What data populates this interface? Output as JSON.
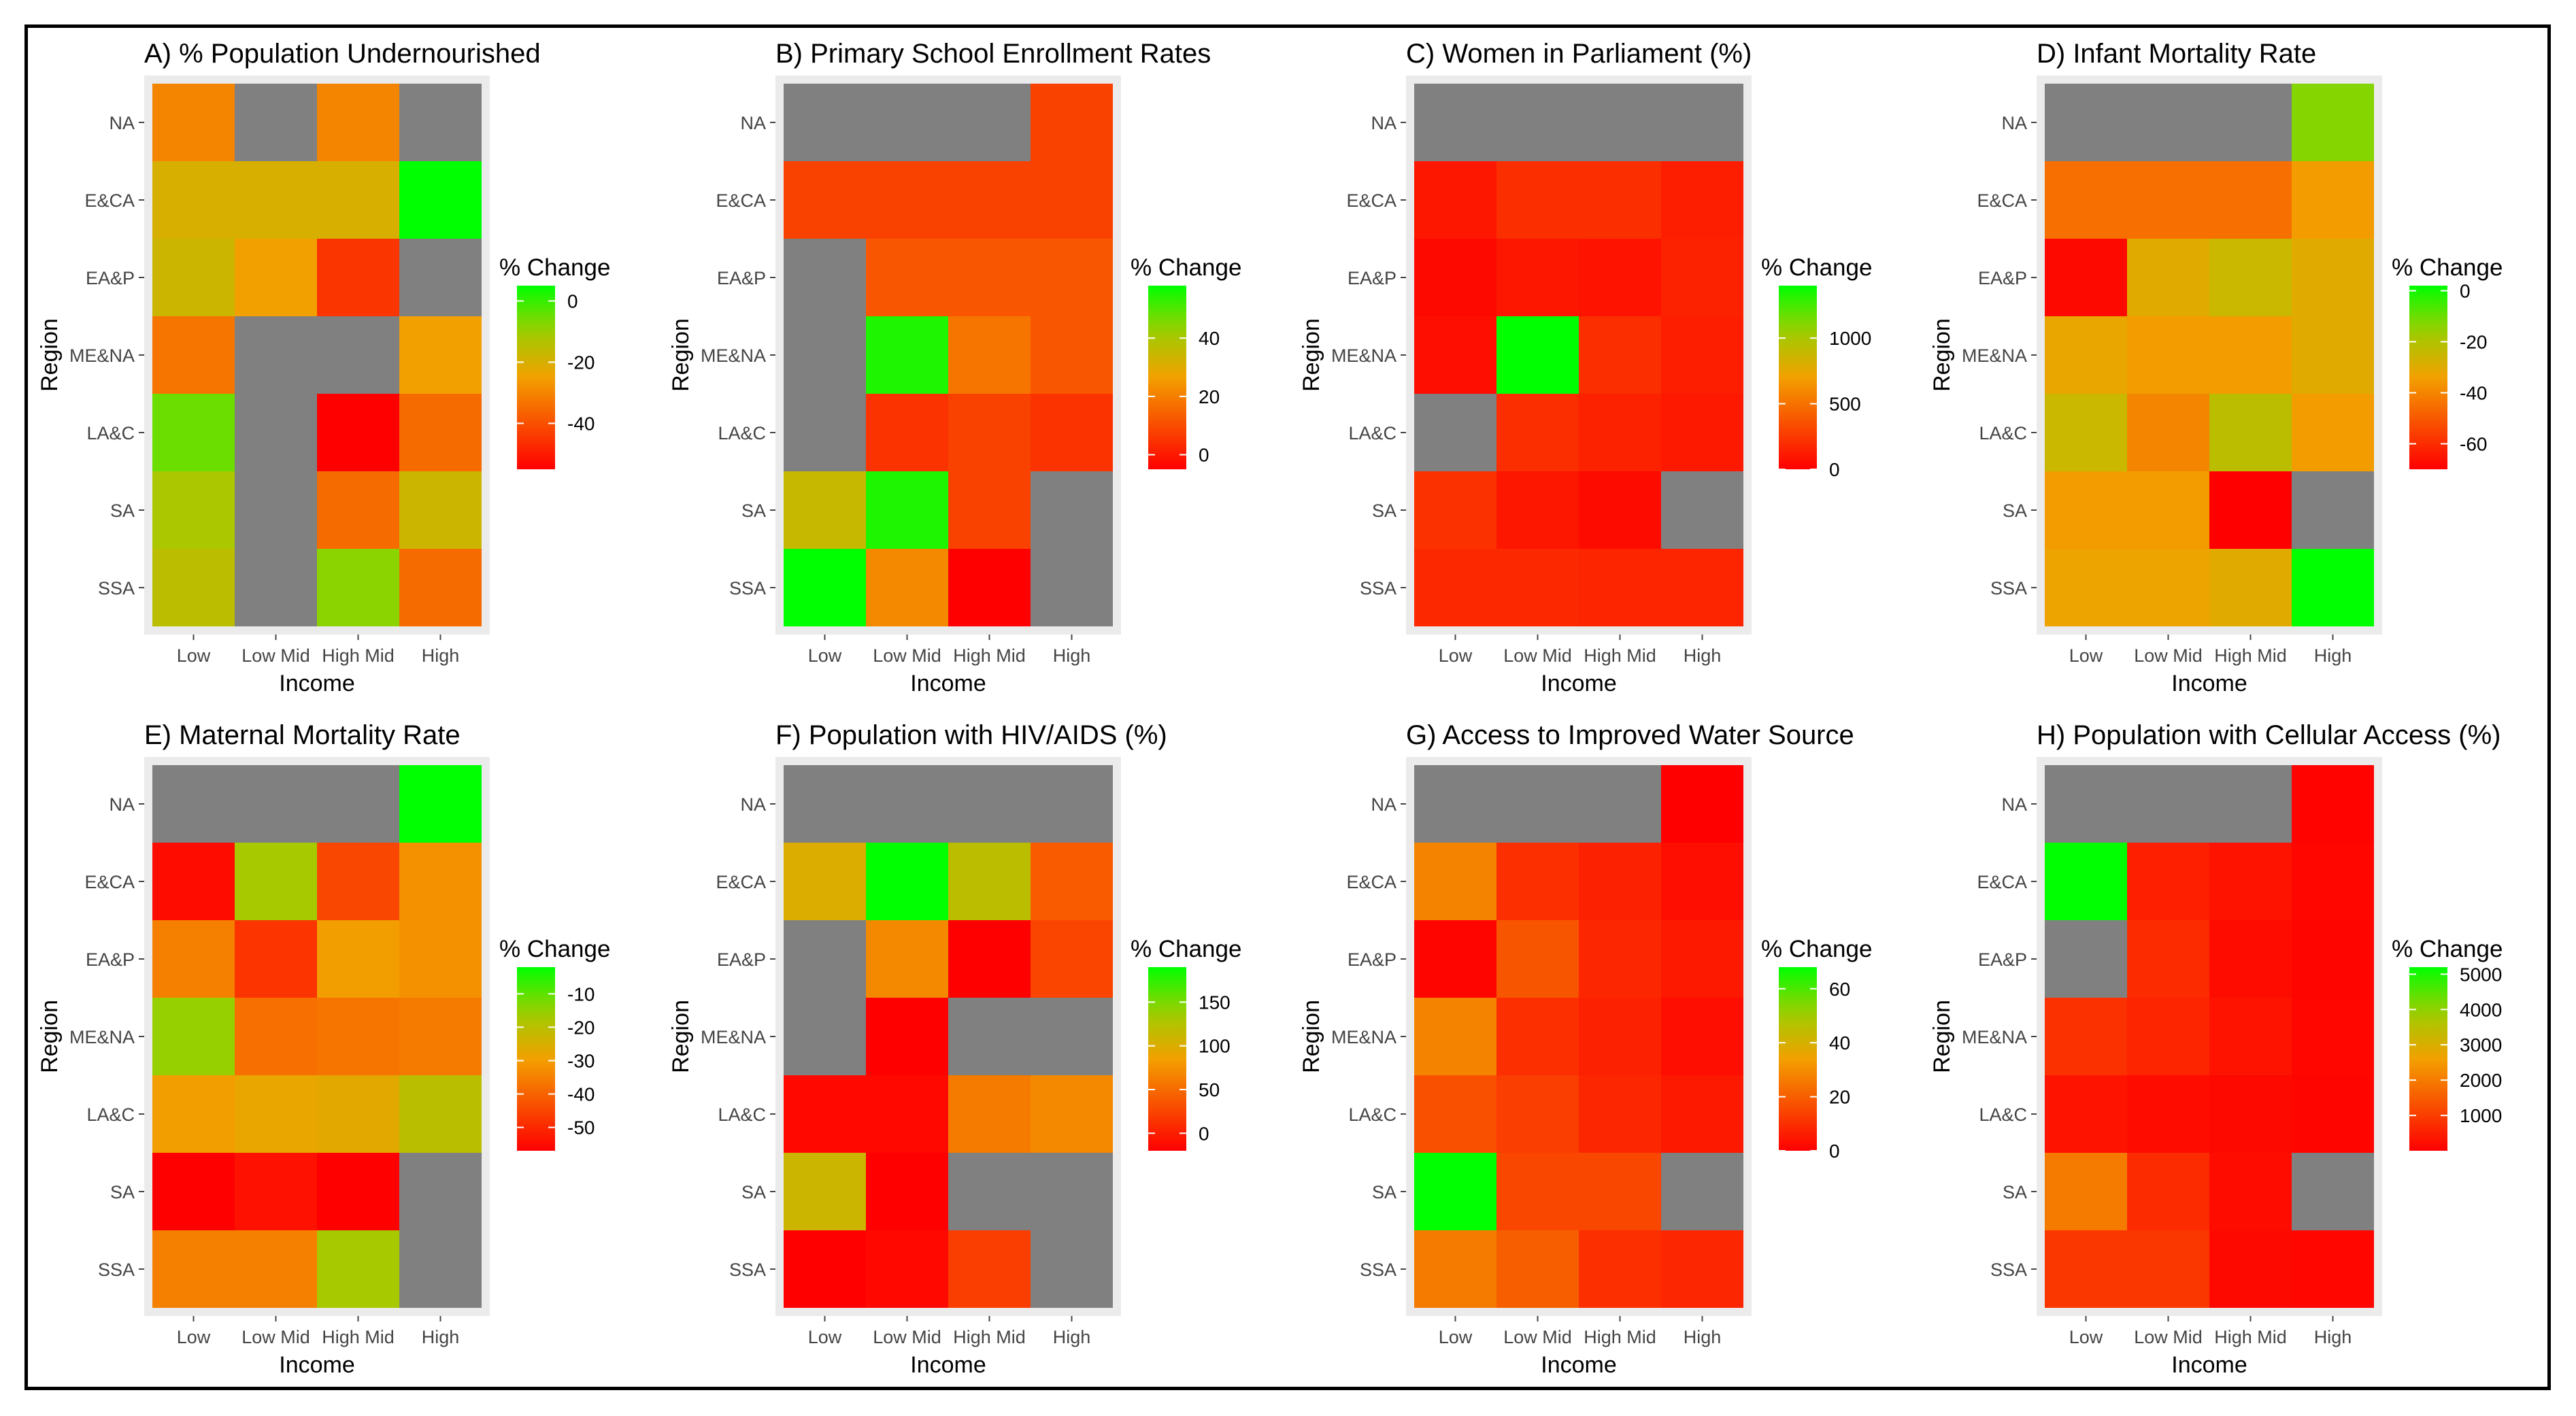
{
  "figure": {
    "ylabel": "Region",
    "xlabel": "Income",
    "legend_title": "% Change",
    "regions": [
      "NA",
      "E&CA",
      "EA&P",
      "ME&NA",
      "LA&C",
      "SA",
      "SSA"
    ],
    "income_levels": [
      "Low",
      "Low Mid",
      "High Mid",
      "High"
    ],
    "colors": {
      "missing": "#808080",
      "panel_bg": "#ebebeb",
      "high_change": "#00ff00",
      "low_change": "#ff0000"
    }
  },
  "chart_data": [
    {
      "type": "heatmap",
      "title": "A) % Population Undernourished",
      "xlabel": "Income",
      "ylabel": "Region",
      "x": [
        "Low",
        "Low Mid",
        "High Mid",
        "High"
      ],
      "y": [
        "NA",
        "E&CA",
        "EA&P",
        "ME&NA",
        "LA&C",
        "SA",
        "SSA"
      ],
      "values": [
        [
          -30,
          null,
          -30,
          null
        ],
        [
          -20,
          -20,
          -20,
          5
        ],
        [
          -18,
          -25,
          -45,
          null
        ],
        [
          -33,
          null,
          null,
          -25
        ],
        [
          -5,
          null,
          -55,
          -35
        ],
        [
          -12,
          null,
          -35,
          -18
        ],
        [
          -15,
          null,
          -8,
          -35
        ]
      ],
      "colorbar": {
        "title": "% Change",
        "ticks": [
          0,
          -20,
          -40
        ],
        "range": [
          -55,
          5
        ],
        "scale": "green_to_red"
      }
    },
    {
      "type": "heatmap",
      "title": "B) Primary School Enrollment Rates",
      "xlabel": "Income",
      "ylabel": "Region",
      "x": [
        "Low",
        "Low Mid",
        "High Mid",
        "High"
      ],
      "y": [
        "NA",
        "E&CA",
        "EA&P",
        "ME&NA",
        "LA&C",
        "SA",
        "SSA"
      ],
      "values": [
        [
          null,
          null,
          null,
          8
        ],
        [
          8,
          8,
          8,
          8
        ],
        [
          null,
          12,
          12,
          12
        ],
        [
          null,
          55,
          18,
          12
        ],
        [
          null,
          5,
          8,
          5
        ],
        [
          35,
          55,
          8,
          null
        ],
        [
          58,
          22,
          -5,
          null
        ]
      ],
      "colorbar": {
        "title": "% Change",
        "ticks": [
          40,
          20,
          0
        ],
        "range": [
          -5,
          58
        ],
        "scale": "green_to_red"
      }
    },
    {
      "type": "heatmap",
      "title": "C) Women in Parliament (%)",
      "xlabel": "Income",
      "ylabel": "Region",
      "x": [
        "Low",
        "Low Mid",
        "High Mid",
        "High"
      ],
      "y": [
        "NA",
        "E&CA",
        "EA&P",
        "ME&NA",
        "LA&C",
        "SA",
        "SSA"
      ],
      "values": [
        [
          null,
          null,
          null,
          null
        ],
        [
          100,
          200,
          200,
          130
        ],
        [
          40,
          100,
          80,
          150
        ],
        [
          60,
          1400,
          200,
          130
        ],
        [
          null,
          200,
          150,
          110
        ],
        [
          220,
          100,
          50,
          null
        ],
        [
          180,
          180,
          160,
          160
        ]
      ],
      "colorbar": {
        "title": "% Change",
        "ticks": [
          1000,
          500,
          0
        ],
        "range": [
          0,
          1400
        ],
        "scale": "green_to_red"
      }
    },
    {
      "type": "heatmap",
      "title": "D) Infant Mortality Rate",
      "xlabel": "Income",
      "ylabel": "Region",
      "x": [
        "Low",
        "Low Mid",
        "High Mid",
        "High"
      ],
      "y": [
        "NA",
        "E&CA",
        "EA&P",
        "ME&NA",
        "LA&C",
        "SA",
        "SSA"
      ],
      "values": [
        [
          null,
          null,
          null,
          -13
        ],
        [
          -45,
          -45,
          -45,
          -35
        ],
        [
          -68,
          -30,
          -25,
          -30
        ],
        [
          -32,
          -35,
          -35,
          -30
        ],
        [
          -25,
          -40,
          -22,
          -35
        ],
        [
          -35,
          -35,
          -70,
          null
        ],
        [
          -33,
          -33,
          -30,
          2
        ]
      ],
      "colorbar": {
        "title": "% Change",
        "ticks": [
          0,
          -20,
          -40,
          -60
        ],
        "range": [
          -70,
          2
        ],
        "scale": "green_to_red"
      }
    },
    {
      "type": "heatmap",
      "title": "E) Maternal Mortality Rate",
      "xlabel": "Income",
      "ylabel": "Region",
      "x": [
        "Low",
        "Low Mid",
        "High Mid",
        "High"
      ],
      "y": [
        "NA",
        "E&CA",
        "EA&P",
        "ME&NA",
        "LA&C",
        "SA",
        "SSA"
      ],
      "values": [
        [
          null,
          null,
          null,
          -2
        ],
        [
          -55,
          -17,
          -45,
          -32
        ],
        [
          -35,
          -48,
          -30,
          -32
        ],
        [
          -15,
          -38,
          -37,
          -36
        ],
        [
          -30,
          -28,
          -27,
          -20
        ],
        [
          -57,
          -54,
          -57,
          null
        ],
        [
          -35,
          -35,
          -17,
          null
        ]
      ],
      "colorbar": {
        "title": "% Change",
        "ticks": [
          -10,
          -20,
          -30,
          -40,
          -50
        ],
        "range": [
          -57,
          -2
        ],
        "scale": "green_to_red"
      }
    },
    {
      "type": "heatmap",
      "title": "F) Population with HIV/AIDS (%)",
      "xlabel": "Income",
      "ylabel": "Region",
      "x": [
        "Low",
        "Low Mid",
        "High Mid",
        "High"
      ],
      "y": [
        "NA",
        "E&CA",
        "EA&P",
        "ME&NA",
        "LA&C",
        "SA",
        "SSA"
      ],
      "values": [
        [
          null,
          null,
          null,
          null
        ],
        [
          100,
          190,
          120,
          40
        ],
        [
          null,
          70,
          -20,
          25
        ],
        [
          null,
          -20,
          null,
          null
        ],
        [
          -15,
          -15,
          60,
          70
        ],
        [
          110,
          -20,
          null,
          null
        ],
        [
          -20,
          -15,
          20,
          null
        ]
      ],
      "colorbar": {
        "title": "% Change",
        "ticks": [
          150,
          100,
          50,
          0
        ],
        "range": [
          -20,
          190
        ],
        "scale": "green_to_red"
      }
    },
    {
      "type": "heatmap",
      "title": "G) Access to Improved Water Source",
      "xlabel": "Income",
      "ylabel": "Region",
      "x": [
        "Low",
        "Low Mid",
        "High Mid",
        "High"
      ],
      "y": [
        "NA",
        "E&CA",
        "EA&P",
        "ME&NA",
        "LA&C",
        "SA",
        "SSA"
      ],
      "values": [
        [
          null,
          null,
          null,
          0
        ],
        [
          28,
          10,
          7,
          3
        ],
        [
          1,
          18,
          8,
          5
        ],
        [
          28,
          10,
          7,
          3
        ],
        [
          17,
          13,
          8,
          5
        ],
        [
          68,
          15,
          15,
          null
        ],
        [
          26,
          20,
          10,
          8
        ]
      ],
      "colorbar": {
        "title": "% Change",
        "ticks": [
          60,
          40,
          20,
          0
        ],
        "range": [
          0,
          68
        ],
        "scale": "green_to_red"
      }
    },
    {
      "type": "heatmap",
      "title": "H) Population with Cellular Access (%)",
      "xlabel": "Income",
      "ylabel": "Region",
      "x": [
        "Low",
        "Low Mid",
        "High Mid",
        "High"
      ],
      "y": [
        "NA",
        "E&CA",
        "EA&P",
        "ME&NA",
        "LA&C",
        "SA",
        "SSA"
      ],
      "values": [
        [
          null,
          null,
          null,
          50
        ],
        [
          5200,
          500,
          300,
          100
        ],
        [
          null,
          700,
          200,
          80
        ],
        [
          800,
          600,
          300,
          100
        ],
        [
          300,
          200,
          150,
          80
        ],
        [
          2000,
          700,
          200,
          null
        ],
        [
          900,
          900,
          150,
          100
        ]
      ],
      "colorbar": {
        "title": "% Change",
        "ticks": [
          5000,
          4000,
          3000,
          2000,
          1000
        ],
        "range": [
          0,
          5200
        ],
        "scale": "green_to_red"
      }
    }
  ]
}
